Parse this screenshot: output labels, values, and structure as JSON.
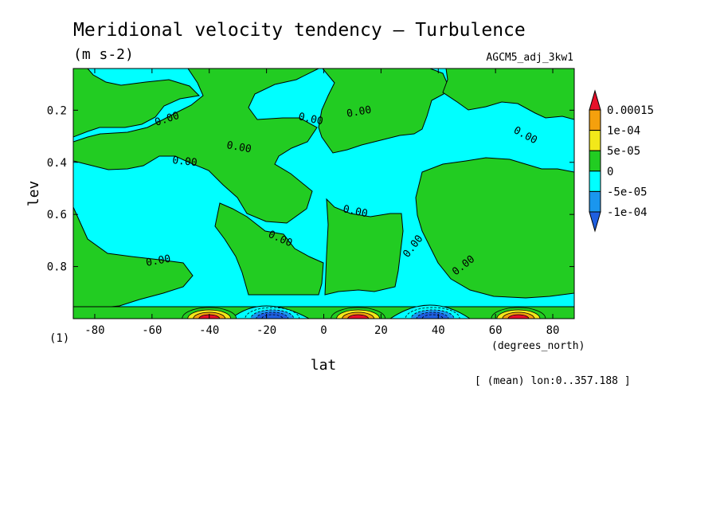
{
  "chart_data": {
    "type": "heatmap",
    "title": "Meridional velocity tendency — Turbulence",
    "units": "(m s-2)",
    "dataset": "AGCM5_adj_3kw1",
    "xlabel": "lat",
    "xunits": "(degrees_north)",
    "ylabel": "lev",
    "y_axis_scale_note": "(1)",
    "footnote": "[ (mean) lon:0..357.188 ]",
    "xlim": [
      -87.5,
      87.5
    ],
    "ylim": [
      1.0,
      0.04
    ],
    "x_ticks": [
      -80,
      -60,
      -40,
      -20,
      0,
      20,
      40,
      60,
      80
    ],
    "x_tick_labels": [
      "-80",
      "-60",
      "-40",
      "-20",
      "0",
      "20",
      "40",
      "60",
      "80"
    ],
    "y_ticks": [
      0.2,
      0.4,
      0.6,
      0.8
    ],
    "y_tick_labels": [
      "0.2",
      "0.4",
      "0.6",
      "0.8"
    ],
    "colorbar": {
      "levels": [
        "0.00015",
        "1e-04",
        "5e-05",
        "0",
        "-5e-05",
        "-1e-04"
      ],
      "colors": [
        "#e8102a",
        "#f5a00d",
        "#f2e81a",
        "#22cc22",
        "#00ffff",
        "#1a96ee",
        "#1f5fe0"
      ]
    },
    "contour_label": "0.00",
    "background_color": "#00ffff",
    "positive_regions": [
      {
        "lat": [
          -85,
          85
        ],
        "lev": [
          0.95,
          1.0
        ]
      },
      {
        "lat": [
          -85,
          -70
        ],
        "lev": [
          0.05,
          0.19
        ]
      },
      {
        "lat": [
          -52,
          5
        ],
        "lev": [
          0.05,
          0.31
        ]
      },
      {
        "lat": [
          -38,
          -10
        ],
        "lev": [
          0.18,
          0.68
        ]
      },
      {
        "lat": [
          -38,
          0
        ],
        "lev": [
          0.57,
          0.88
        ]
      },
      {
        "lat": [
          2,
          28
        ],
        "lev": [
          0.53,
          0.94
        ]
      },
      {
        "lat": [
          5,
          40
        ],
        "lev": [
          0.05,
          0.15
        ]
      },
      {
        "lat": [
          35,
          85
        ],
        "lev": [
          0.05,
          0.17
        ]
      },
      {
        "lat": [
          23,
          85
        ],
        "lev": [
          0.36,
          0.94
        ]
      },
      {
        "lat": [
          -85,
          -50
        ],
        "lev": [
          0.72,
          0.88
        ]
      }
    ],
    "extrema_near_surface": [
      {
        "lat": -40,
        "sign": "positive",
        "color": "#f5a00d"
      },
      {
        "lat": -18,
        "sign": "negative",
        "color": "#1f5fe0"
      },
      {
        "lat": 12,
        "sign": "positive",
        "color": "#f5a00d"
      },
      {
        "lat": 38,
        "sign": "negative",
        "color": "#1f5fe0"
      },
      {
        "lat": 68,
        "sign": "positive",
        "color": "#f5a00d"
      }
    ]
  }
}
